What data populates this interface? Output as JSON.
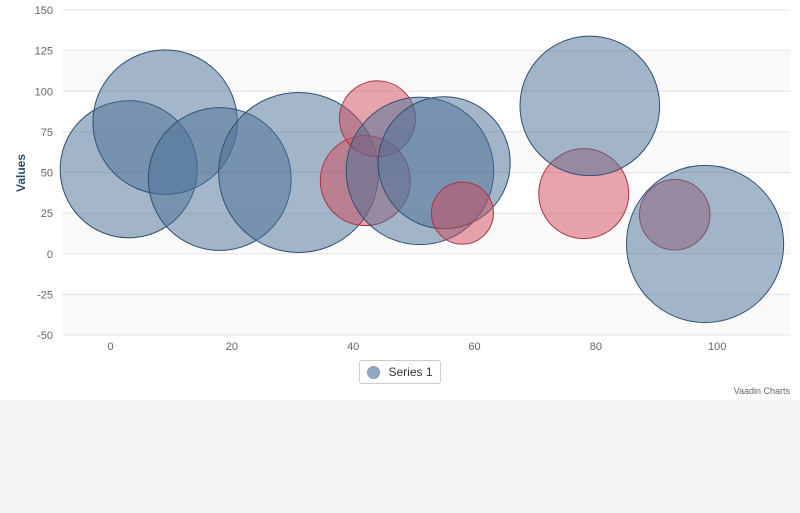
{
  "chart_data": {
    "type": "bubble",
    "ylabel": "Values",
    "xlim": [
      -8,
      112
    ],
    "ylim": [
      -50,
      150
    ],
    "x_ticks": [
      0,
      20,
      40,
      60,
      80,
      100
    ],
    "y_ticks": [
      150,
      125,
      100,
      75,
      50,
      25,
      0,
      -25,
      -50
    ],
    "grid": true,
    "legend_position": "bottom-center",
    "series": [
      {
        "name": "Series 1",
        "color": "#4a6f96",
        "negative_color": "#d04a5a",
        "points": [
          {
            "x": 3,
            "y": 52,
            "z": 70
          },
          {
            "x": 9,
            "y": 81,
            "z": 79
          },
          {
            "x": 18,
            "y": 46,
            "z": 77
          },
          {
            "x": 31,
            "y": 50,
            "z": 100
          },
          {
            "x": 42,
            "y": 45,
            "z": 25,
            "negative": true
          },
          {
            "x": 44,
            "y": 83,
            "z": 16,
            "negative": true
          },
          {
            "x": 51,
            "y": 51,
            "z": 83
          },
          {
            "x": 55,
            "y": 56,
            "z": 64
          },
          {
            "x": 58,
            "y": 25,
            "z": 9,
            "negative": true
          },
          {
            "x": 78,
            "y": 37,
            "z": 25,
            "negative": true
          },
          {
            "x": 79,
            "y": 91,
            "z": 73
          },
          {
            "x": 93,
            "y": 24,
            "z": 13,
            "negative": true
          },
          {
            "x": 98,
            "y": 6,
            "z": 96
          }
        ]
      }
    ]
  },
  "legend": {
    "label": "Series 1"
  },
  "credits": "Vaadin Charts"
}
